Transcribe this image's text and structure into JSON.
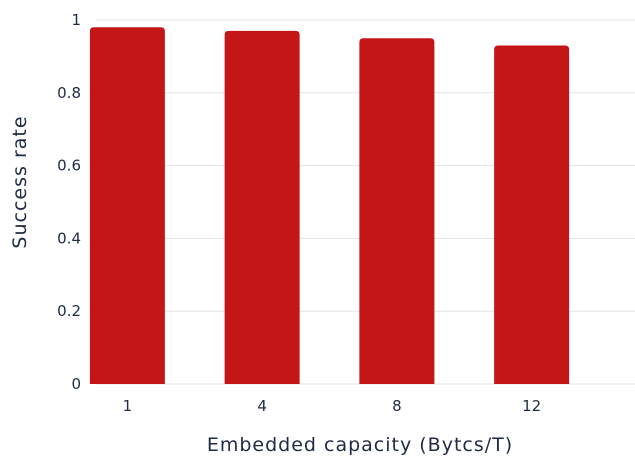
{
  "chart_data": {
    "type": "bar",
    "categories": [
      "1",
      "4",
      "8",
      "12"
    ],
    "values": [
      0.98,
      0.97,
      0.95,
      0.93
    ],
    "xlabel": "Embedded capacity (Bytcs/T)",
    "ylabel": "Success rate",
    "ylim": [
      0,
      1
    ],
    "yticks": [
      "0",
      "0.2",
      "0.4",
      "0.6",
      "0.8",
      "1"
    ],
    "grid": true,
    "legend": "none",
    "colors": {
      "bar": "#c41616",
      "grid": "#e3e3e3",
      "text": "#1f2a44"
    }
  }
}
